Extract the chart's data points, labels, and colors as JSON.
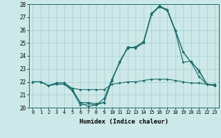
{
  "xlabel": "Humidex (Indice chaleur)",
  "x_ticks": [
    0,
    1,
    2,
    3,
    4,
    5,
    6,
    7,
    8,
    9,
    10,
    11,
    12,
    13,
    14,
    15,
    16,
    17,
    18,
    19,
    20,
    21,
    22,
    23
  ],
  "ylim": [
    20,
    28
  ],
  "xlim": [
    -0.5,
    23.5
  ],
  "yticks": [
    20,
    21,
    22,
    23,
    24,
    25,
    26,
    27,
    28
  ],
  "background_color": "#cce8e8",
  "grid_color": "#aacccc",
  "line_color": "#1a6b6b",
  "series": [
    [
      22.0,
      22.0,
      21.7,
      21.8,
      21.8,
      21.3,
      20.2,
      20.3,
      20.2,
      20.7,
      22.2,
      23.5,
      24.7,
      24.6,
      25.0,
      27.2,
      27.8,
      27.5,
      25.9,
      23.5,
      23.6,
      22.8,
      21.8,
      21.8
    ],
    [
      22.0,
      22.0,
      21.7,
      21.9,
      21.9,
      21.4,
      20.4,
      20.4,
      20.3,
      20.4,
      22.1,
      23.6,
      24.6,
      24.7,
      25.1,
      27.3,
      27.8,
      27.6,
      26.0,
      24.3,
      23.5,
      22.4,
      21.8,
      21.7
    ],
    [
      22.0,
      22.0,
      21.7,
      21.9,
      21.9,
      21.4,
      20.4,
      20.1,
      20.2,
      20.4,
      22.1,
      23.5,
      24.6,
      24.7,
      25.1,
      27.2,
      27.9,
      27.5,
      26.0,
      24.3,
      23.5,
      22.9,
      21.8,
      21.7
    ],
    [
      22.0,
      22.0,
      21.7,
      21.9,
      21.9,
      21.5,
      21.4,
      21.4,
      21.4,
      21.4,
      21.8,
      21.9,
      22.0,
      22.0,
      22.1,
      22.2,
      22.2,
      22.2,
      22.1,
      22.0,
      21.9,
      21.9,
      21.8,
      21.7
    ]
  ]
}
